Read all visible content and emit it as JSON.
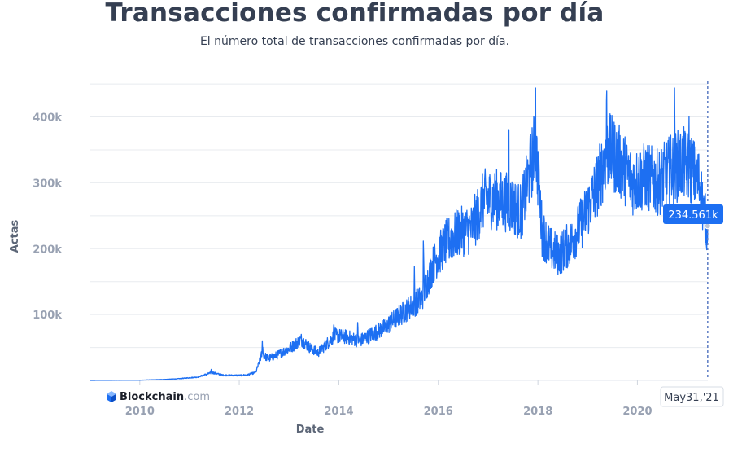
{
  "header": {
    "title": "Transacciones confirmadas por día",
    "subtitle": "El número total de transacciones confirmadas por día."
  },
  "brand": {
    "name": "Blockchain",
    "suffix": ".com",
    "icon": "blockchain-cube-icon"
  },
  "colors": {
    "line": "#1d6ff2",
    "grid": "#e8ebef",
    "tick": "#98a1b2",
    "title": "#353f52",
    "crosshair": "#5b7cc4"
  },
  "hover": {
    "value_label": "234.561k",
    "date_label": "May31,'21",
    "date": "2021-05-31",
    "value": 234561
  },
  "chart_data": {
    "type": "line",
    "title": "Transacciones confirmadas por día",
    "subtitle": "El número total de transacciones confirmadas por día.",
    "xlabel": "Date",
    "ylabel": "Actas",
    "x_ticks": [
      "2010",
      "2012",
      "2014",
      "2016",
      "2018",
      "2020"
    ],
    "y_ticks": [
      "100k",
      "200k",
      "300k",
      "400k"
    ],
    "xlim": [
      "2009-01-03",
      "2021-06-01"
    ],
    "ylim": [
      0,
      460000
    ],
    "grid": true,
    "series": [
      {
        "points": [
          [
            "2009-01-03",
            0
          ],
          [
            "2009-07-01",
            300
          ],
          [
            "2010-01-01",
            400
          ],
          [
            "2010-07-01",
            1500
          ],
          [
            "2010-10-01",
            2500
          ],
          [
            "2011-01-01",
            4000
          ],
          [
            "2011-03-01",
            5000
          ],
          [
            "2011-06-15",
            12000
          ],
          [
            "2011-09-01",
            8000
          ],
          [
            "2012-01-01",
            7500
          ],
          [
            "2012-03-01",
            8500
          ],
          [
            "2012-05-01",
            12000
          ],
          [
            "2012-06-15",
            40000
          ],
          [
            "2012-08-01",
            33000
          ],
          [
            "2012-10-01",
            38000
          ],
          [
            "2013-01-01",
            48000
          ],
          [
            "2013-04-01",
            62000
          ],
          [
            "2013-06-01",
            50000
          ],
          [
            "2013-08-01",
            42000
          ],
          [
            "2013-10-01",
            55000
          ],
          [
            "2013-12-01",
            68000
          ],
          [
            "2014-03-01",
            66000
          ],
          [
            "2014-06-01",
            60000
          ],
          [
            "2014-09-01",
            70000
          ],
          [
            "2014-12-01",
            80000
          ],
          [
            "2015-03-01",
            95000
          ],
          [
            "2015-06-01",
            110000
          ],
          [
            "2015-09-01",
            125000
          ],
          [
            "2015-12-01",
            180000
          ],
          [
            "2016-03-01",
            210000
          ],
          [
            "2016-06-01",
            225000
          ],
          [
            "2016-09-01",
            230000
          ],
          [
            "2016-12-01",
            275000
          ],
          [
            "2017-03-01",
            275000
          ],
          [
            "2017-06-01",
            270000
          ],
          [
            "2017-09-01",
            255000
          ],
          [
            "2017-12-15",
            360000
          ],
          [
            "2018-02-01",
            225000
          ],
          [
            "2018-04-01",
            200000
          ],
          [
            "2018-06-01",
            190000
          ],
          [
            "2018-09-01",
            210000
          ],
          [
            "2018-12-01",
            245000
          ],
          [
            "2019-03-01",
            290000
          ],
          [
            "2019-06-01",
            350000
          ],
          [
            "2019-09-01",
            330000
          ],
          [
            "2019-12-01",
            300000
          ],
          [
            "2020-03-01",
            310000
          ],
          [
            "2020-06-01",
            300000
          ],
          [
            "2020-09-01",
            320000
          ],
          [
            "2020-12-01",
            330000
          ],
          [
            "2021-02-01",
            320000
          ],
          [
            "2021-04-01",
            300000
          ],
          [
            "2021-05-10",
            245000
          ],
          [
            "2021-05-31",
            234561
          ]
        ]
      }
    ]
  }
}
